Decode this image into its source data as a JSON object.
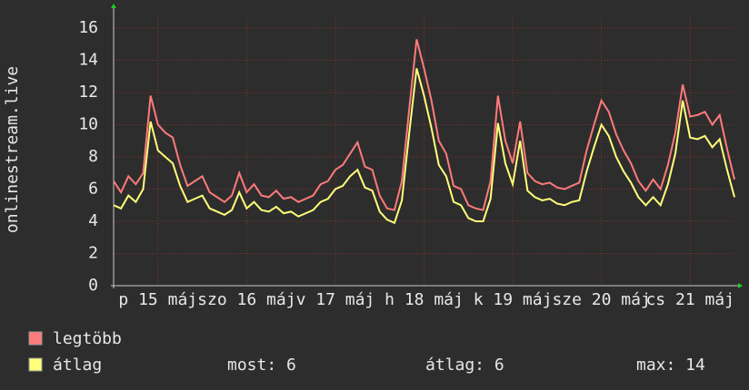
{
  "chart_data": {
    "type": "line",
    "y_label": "onlinestream.live",
    "x": [
      0,
      2,
      4,
      6,
      8,
      10,
      12,
      14,
      16,
      18,
      20,
      22,
      24,
      26,
      28,
      30,
      32,
      34,
      36,
      38,
      40,
      42,
      44,
      46,
      48,
      50,
      52,
      54,
      56,
      58,
      60,
      62,
      64,
      66,
      68,
      70,
      72,
      74,
      76,
      78,
      80,
      82,
      84,
      86,
      88,
      90,
      92,
      94,
      96,
      98,
      100,
      102,
      104,
      106,
      108,
      110,
      112,
      114,
      116,
      118,
      120,
      122,
      124,
      126,
      128,
      130,
      132,
      134,
      136,
      138,
      140,
      142,
      144,
      146,
      148,
      150,
      152,
      154,
      156,
      158,
      160,
      162,
      164,
      166,
      168
    ],
    "xlim": [
      0,
      168
    ],
    "xticks": [
      {
        "value": 12,
        "label": "p 15 máj"
      },
      {
        "value": 36,
        "label": "szo 16 máj"
      },
      {
        "value": 60,
        "label": "v 17 máj"
      },
      {
        "value": 84,
        "label": "h 18 máj"
      },
      {
        "value": 108,
        "label": "k 19 máj"
      },
      {
        "value": 132,
        "label": "sze 20 máj"
      },
      {
        "value": 156,
        "label": "cs 21 máj"
      }
    ],
    "ylim": [
      0,
      16.9
    ],
    "yticks": [
      0,
      2,
      4,
      6,
      8,
      10,
      12,
      14,
      16
    ],
    "grid": true,
    "series": [
      {
        "name": "legtöbb",
        "color": "#ff7a7a",
        "values": [
          6.5,
          5.8,
          6.8,
          6.3,
          7,
          11.8,
          10,
          9.5,
          9.2,
          7.5,
          6.2,
          6.5,
          6.8,
          5.8,
          5.5,
          5.2,
          5.6,
          7,
          5.8,
          6.3,
          5.6,
          5.5,
          5.9,
          5.4,
          5.5,
          5.2,
          5.4,
          5.6,
          6.3,
          6.5,
          7.2,
          7.5,
          8.2,
          8.9,
          7.4,
          7.2,
          5.6,
          4.8,
          4.7,
          6.5,
          11,
          15.3,
          13.5,
          11.5,
          9,
          8.2,
          6.2,
          6,
          5,
          4.8,
          4.7,
          6.5,
          11.8,
          9,
          7.6,
          10.2,
          7,
          6.5,
          6.3,
          6.4,
          6.1,
          6,
          6.2,
          6.4,
          8.4,
          10,
          11.5,
          10.8,
          9.4,
          8.4,
          7.6,
          6.5,
          5.9,
          6.6,
          6,
          7.5,
          9.5,
          12.5,
          10.5,
          10.6,
          10.8,
          10,
          10.6,
          8.5,
          6.6
        ]
      },
      {
        "name": "átlag",
        "color": "#ffff7a",
        "values": [
          5,
          4.8,
          5.6,
          5.2,
          6,
          10.2,
          8.4,
          8,
          7.6,
          6.2,
          5.2,
          5.4,
          5.6,
          4.8,
          4.6,
          4.4,
          4.7,
          5.8,
          4.8,
          5.2,
          4.7,
          4.6,
          4.9,
          4.5,
          4.6,
          4.3,
          4.5,
          4.7,
          5.2,
          5.4,
          6,
          6.2,
          6.8,
          7.2,
          6.1,
          5.9,
          4.6,
          4.1,
          3.9,
          5.3,
          9.5,
          13.5,
          11.8,
          9.8,
          7.5,
          6.8,
          5.2,
          5,
          4.2,
          4,
          4,
          5.4,
          10.1,
          7.6,
          6.3,
          9,
          5.9,
          5.5,
          5.3,
          5.4,
          5.1,
          5,
          5.2,
          5.3,
          7.1,
          8.6,
          10,
          9.3,
          8,
          7.1,
          6.4,
          5.5,
          5,
          5.5,
          5,
          6.3,
          8.2,
          11.5,
          9.2,
          9.1,
          9.3,
          8.6,
          9.1,
          7.2,
          5.5
        ]
      }
    ],
    "stats": [
      "most: 6",
      "átlag: 6",
      "max: 14"
    ]
  }
}
